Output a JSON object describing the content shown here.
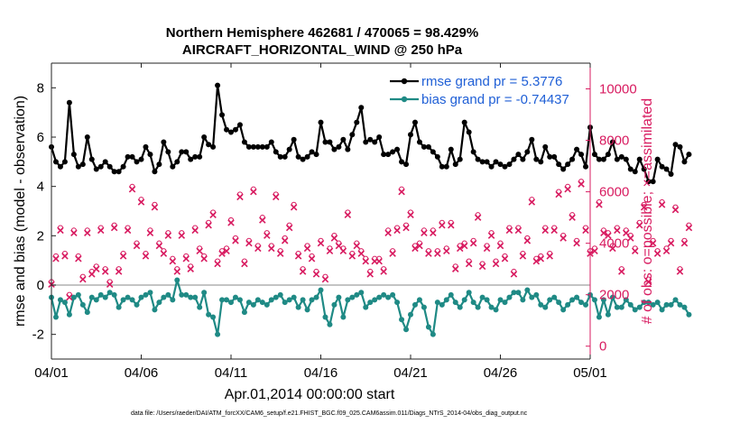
{
  "chart_data": {
    "type": "line",
    "title": "Northern Hemisphere 462681 / 470065 = 98.429%",
    "subtitle": "AIRCRAFT_HORIZONTAL_WIND @ 250 hPa",
    "xlabel": "Apr.01,2014 00:00:00 start",
    "ylabel_left": "rmse and bias (model - observation)",
    "ylabel_right": "# of obs: o=possible; ×=assimilated",
    "footer": "data file: /Users/raeder/DAI/ATM_forcXX/CAM6_setup/f.e21.FHIST_BGC.f09_025.CAM6assim.011/Diags_NTrS_2014-04/obs_diag_output.nc",
    "xlim": [
      0,
      30
    ],
    "ylim_left": [
      -3,
      9
    ],
    "ylim_right": [
      -500,
      11000
    ],
    "x_ticks": [
      0,
      5,
      10,
      15,
      20,
      25,
      30
    ],
    "x_tick_labels": [
      "04/01",
      "04/06",
      "04/11",
      "04/16",
      "04/21",
      "04/26",
      "05/01"
    ],
    "y_left_ticks": [
      -2,
      0,
      2,
      4,
      6,
      8
    ],
    "y_left_tick_labels": [
      "-2",
      "0",
      "2",
      "4",
      "6",
      "8"
    ],
    "y_right_ticks": [
      0,
      2000,
      4000,
      6000,
      8000,
      10000
    ],
    "y_right_tick_labels": [
      "0",
      "2000",
      "4000",
      "6000",
      "8000",
      "10000"
    ],
    "grid": false,
    "legend_position": "top-right",
    "series": [
      {
        "name": "rmse grand pr = 5.3776",
        "axis": "left",
        "marker": "filled-circle",
        "color": "#000000",
        "x_step": 0.25,
        "values": [
          5.6,
          5.0,
          4.8,
          5.0,
          7.4,
          5.3,
          4.8,
          4.9,
          6.0,
          5.1,
          4.7,
          4.8,
          5.0,
          4.8,
          4.6,
          4.6,
          4.8,
          5.2,
          5.2,
          5.0,
          5.1,
          5.6,
          5.3,
          4.6,
          4.9,
          5.8,
          5.4,
          4.8,
          5.0,
          5.4,
          5.4,
          5.1,
          5.2,
          5.2,
          6.0,
          5.7,
          5.6,
          8.1,
          6.9,
          6.3,
          6.2,
          6.3,
          6.5,
          5.8,
          5.6,
          5.6,
          5.6,
          5.6,
          5.6,
          5.8,
          5.4,
          5.2,
          5.2,
          5.5,
          5.9,
          5.2,
          5.1,
          5.2,
          5.4,
          5.3,
          6.6,
          5.8,
          5.8,
          5.5,
          5.6,
          5.9,
          5.5,
          6.1,
          6.6,
          7.2,
          5.8,
          5.9,
          5.8,
          6.0,
          5.3,
          5.3,
          5.4,
          5.5,
          5.0,
          4.9,
          6.1,
          6.6,
          5.8,
          5.6,
          5.6,
          5.4,
          5.2,
          4.8,
          4.8,
          5.5,
          4.9,
          5.1,
          6.6,
          6.2,
          5.4,
          5.1,
          5.0,
          5.0,
          4.8,
          5.0,
          4.9,
          4.8,
          4.9,
          5.1,
          5.3,
          5.1,
          5.4,
          5.9,
          5.1,
          5.0,
          5.6,
          5.2,
          5.2,
          4.9,
          4.7,
          4.9,
          5.1,
          5.5,
          5.3,
          4.8,
          6.4,
          5.3,
          5.1,
          5.1,
          5.3,
          5.8,
          5.1,
          5.2,
          5.1,
          4.7,
          4.6,
          5.1,
          4.7,
          4.2,
          4.2,
          5.1,
          4.8,
          4.7,
          4.5,
          5.7,
          5.6,
          5.0,
          5.3
        ]
      },
      {
        "name": "bias grand pr = -0.74437",
        "axis": "left",
        "marker": "filled-circle",
        "color": "#1f8a85",
        "x_step": 0.25,
        "values": [
          -0.5,
          -1.3,
          -0.6,
          -0.7,
          -1.2,
          -0.5,
          -0.4,
          -0.8,
          -1.1,
          -0.5,
          -0.6,
          -0.4,
          -0.5,
          -0.3,
          -0.4,
          -0.9,
          -0.6,
          -0.5,
          -0.6,
          -0.8,
          -0.5,
          -0.4,
          -0.3,
          -1.0,
          -0.7,
          -0.5,
          -0.4,
          -0.6,
          0.2,
          -0.4,
          -0.4,
          -0.5,
          -0.5,
          -0.9,
          -0.3,
          -1.2,
          -1.3,
          -2.0,
          -0.6,
          -0.6,
          -0.7,
          -0.5,
          -0.6,
          -1.1,
          -0.7,
          -0.8,
          -0.6,
          -0.7,
          -0.8,
          -0.6,
          -0.5,
          -0.4,
          -0.7,
          -0.6,
          -0.5,
          -0.9,
          -0.6,
          -1.0,
          -0.6,
          -0.5,
          -0.2,
          -1.3,
          -1.6,
          -0.8,
          -0.5,
          -1.3,
          -0.6,
          -0.5,
          -0.4,
          -0.3,
          -0.9,
          -0.7,
          -0.6,
          -0.5,
          -0.4,
          -0.5,
          -0.4,
          -0.7,
          -1.4,
          -1.8,
          -1.2,
          -0.8,
          -0.6,
          -0.9,
          -1.7,
          -2.0,
          -0.7,
          -0.8,
          -0.6,
          -0.4,
          -0.7,
          -0.9,
          -0.6,
          -0.3,
          -0.7,
          -0.9,
          -0.5,
          -0.6,
          -0.9,
          -1.0,
          -0.6,
          -0.7,
          -0.5,
          -0.3,
          -0.3,
          -0.6,
          -0.2,
          -0.5,
          -0.4,
          -0.8,
          -0.9,
          -0.6,
          -0.5,
          -0.7,
          -1.0,
          -0.8,
          -0.6,
          -0.5,
          -0.7,
          -0.8,
          -0.4,
          -0.6,
          -1.3,
          -0.6,
          -1.2,
          -0.5,
          -0.9,
          -0.9,
          -0.6,
          -0.8,
          -1.0,
          -0.9,
          -0.7,
          -0.7,
          -0.8,
          -0.7,
          -1.0,
          -0.8,
          -0.8,
          -0.6,
          -0.8,
          -0.9,
          -1.2
        ]
      },
      {
        "name": "# of obs possible",
        "axis": "right",
        "marker": "open-circle",
        "color": "#d81b60",
        "x_step": 0.25,
        "values": [
          2500,
          3500,
          4600,
          3600,
          2000,
          4500,
          3500,
          2700,
          4500,
          2900,
          3100,
          4600,
          3000,
          2500,
          4700,
          3000,
          3600,
          4600,
          6200,
          4000,
          5700,
          3600,
          4500,
          5500,
          4000,
          3700,
          4400,
          3400,
          3000,
          4400,
          3500,
          3100,
          4600,
          3800,
          3500,
          4800,
          5200,
          3300,
          3700,
          3800,
          4900,
          4200,
          5900,
          3300,
          4100,
          6100,
          3900,
          5000,
          4400,
          3900,
          5900,
          3700,
          4200,
          4700,
          5500,
          3600,
          3000,
          3900,
          3500,
          2900,
          4100,
          2700,
          3800,
          4300,
          4000,
          3800,
          5200,
          3600,
          4000,
          3700,
          3400,
          2900,
          3400,
          3400,
          3000,
          4500,
          3700,
          4600,
          6100,
          4700,
          5200,
          3900,
          4000,
          4500,
          3700,
          4500,
          3700,
          4800,
          3800,
          4800,
          3100,
          3900,
          4000,
          3300,
          4100,
          5100,
          3200,
          3900,
          4400,
          3300,
          4000,
          3500,
          4600,
          2900,
          4600,
          3600,
          4200,
          5700,
          3400,
          3500,
          4600,
          3600,
          4600,
          6000,
          4300,
          6200,
          5100,
          4100,
          6400,
          4600,
          3700,
          3800,
          5600,
          4500,
          4400,
          3900,
          4600,
          3000,
          4500,
          4300,
          3800,
          4800,
          5500,
          2600,
          4100,
          3700,
          5600,
          3800,
          4100,
          5400,
          3000,
          4100,
          4700
        ]
      },
      {
        "name": "# of obs assimilated",
        "axis": "right",
        "marker": "cross",
        "color": "#d81b60",
        "x_step": 0.25,
        "values": [
          2400,
          3400,
          4500,
          3500,
          1900,
          4400,
          3400,
          2600,
          4400,
          2800,
          3000,
          4500,
          2900,
          2400,
          4600,
          2900,
          3500,
          4500,
          6100,
          3900,
          5600,
          3500,
          4400,
          5400,
          3900,
          3600,
          4300,
          3300,
          2900,
          4300,
          3400,
          3000,
          4500,
          3700,
          3400,
          4700,
          5100,
          3200,
          3600,
          3700,
          4800,
          4100,
          5800,
          3200,
          4000,
          6000,
          3800,
          4900,
          4300,
          3800,
          5800,
          3600,
          4100,
          4600,
          5400,
          3500,
          2900,
          3800,
          3400,
          2800,
          4000,
          2600,
          3700,
          4200,
          3900,
          3700,
          5100,
          3500,
          3900,
          3600,
          3300,
          2800,
          3300,
          3300,
          2900,
          4400,
          3600,
          4500,
          6000,
          4600,
          5100,
          3800,
          3900,
          4400,
          3600,
          4400,
          3600,
          4700,
          3700,
          4700,
          3000,
          3800,
          3900,
          3200,
          4000,
          5000,
          3100,
          3800,
          4300,
          3200,
          3900,
          3400,
          4500,
          2800,
          4500,
          3500,
          4100,
          5600,
          3300,
          3400,
          4500,
          3500,
          4500,
          5900,
          4200,
          6100,
          5000,
          4000,
          6300,
          4500,
          3600,
          3700,
          5500,
          4400,
          4300,
          3800,
          4500,
          2900,
          4400,
          4200,
          3700,
          4700,
          5400,
          2500,
          4000,
          3600,
          5500,
          3700,
          4000,
          5300,
          2900,
          4000,
          4600
        ]
      }
    ],
    "colors": {
      "rmse": "#000000",
      "bias": "#1f8a85",
      "obs": "#d81b60",
      "legend_text": "#1f5fd6",
      "zero_line": "#b0b0b0"
    }
  }
}
